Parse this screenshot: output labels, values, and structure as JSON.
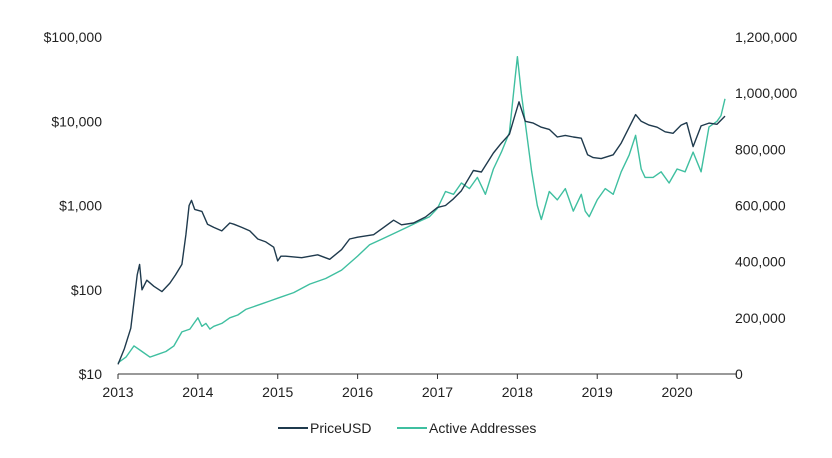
{
  "chart_data": {
    "type": "line",
    "title": "",
    "xlabel": "",
    "grid": false,
    "legend_position": "bottom-center",
    "x_axis": {
      "range": [
        2013,
        2020.75
      ],
      "ticks": [
        2013,
        2014,
        2015,
        2016,
        2017,
        2018,
        2019,
        2020
      ],
      "tick_labels": [
        "2013",
        "2014",
        "2015",
        "2016",
        "2017",
        "2018",
        "2019",
        "2020"
      ]
    },
    "y_left": {
      "scale": "log",
      "range": [
        10,
        100000
      ],
      "ticks": [
        10,
        100,
        1000,
        10000,
        100000
      ],
      "tick_labels": [
        "$10",
        "$100",
        "$1,000",
        "$10,000",
        "$100,000"
      ]
    },
    "y_right": {
      "scale": "linear",
      "range": [
        0,
        1200000
      ],
      "ticks": [
        0,
        200000,
        400000,
        600000,
        800000,
        1000000,
        1200000
      ],
      "tick_labels": [
        "0",
        "200,000",
        "400,000",
        "600,000",
        "800,000",
        "1,000,000",
        "1,200,000"
      ]
    },
    "series": [
      {
        "name": "PriceUSD",
        "axis": "left",
        "color": "#1f3a4d",
        "x": [
          2013.0,
          2013.08,
          2013.16,
          2013.24,
          2013.27,
          2013.3,
          2013.36,
          2013.45,
          2013.55,
          2013.65,
          2013.72,
          2013.8,
          2013.85,
          2013.89,
          2013.92,
          2013.96,
          2014.05,
          2014.12,
          2014.2,
          2014.3,
          2014.4,
          2014.45,
          2014.55,
          2014.65,
          2014.75,
          2014.85,
          2014.95,
          2015.0,
          2015.04,
          2015.1,
          2015.3,
          2015.5,
          2015.65,
          2015.8,
          2015.9,
          2016.0,
          2016.2,
          2016.45,
          2016.55,
          2016.7,
          2016.85,
          2017.0,
          2017.1,
          2017.2,
          2017.3,
          2017.45,
          2017.55,
          2017.7,
          2017.8,
          2017.9,
          2017.96,
          2018.02,
          2018.1,
          2018.2,
          2018.3,
          2018.4,
          2018.5,
          2018.6,
          2018.7,
          2018.8,
          2018.88,
          2018.95,
          2019.05,
          2019.2,
          2019.3,
          2019.4,
          2019.48,
          2019.55,
          2019.65,
          2019.75,
          2019.85,
          2019.95,
          2020.05,
          2020.12,
          2020.2,
          2020.3,
          2020.4,
          2020.5,
          2020.6
        ],
        "values": [
          13,
          20,
          35,
          150,
          200,
          100,
          130,
          110,
          95,
          120,
          150,
          200,
          450,
          1000,
          1150,
          900,
          850,
          600,
          550,
          500,
          620,
          600,
          550,
          500,
          400,
          370,
          320,
          220,
          250,
          250,
          240,
          260,
          230,
          300,
          400,
          420,
          450,
          670,
          590,
          620,
          730,
          950,
          1000,
          1200,
          1500,
          2600,
          2500,
          4200,
          5500,
          7000,
          11000,
          17000,
          10000,
          9500,
          8500,
          8000,
          6500,
          6800,
          6500,
          6300,
          4000,
          3700,
          3600,
          4000,
          5500,
          8500,
          12000,
          10000,
          9000,
          8500,
          7500,
          7200,
          9000,
          9600,
          5000,
          8800,
          9500,
          9200,
          11500
        ]
      },
      {
        "name": "Active Addresses",
        "axis": "right",
        "color": "#3fbfa0",
        "x": [
          2013.0,
          2013.1,
          2013.2,
          2013.3,
          2013.4,
          2013.5,
          2013.6,
          2013.7,
          2013.8,
          2013.9,
          2013.95,
          2014.0,
          2014.05,
          2014.1,
          2014.15,
          2014.2,
          2014.3,
          2014.4,
          2014.5,
          2014.6,
          2014.7,
          2014.8,
          2014.9,
          2015.0,
          2015.2,
          2015.4,
          2015.6,
          2015.8,
          2016.0,
          2016.15,
          2016.3,
          2016.45,
          2016.6,
          2016.75,
          2016.9,
          2017.0,
          2017.1,
          2017.2,
          2017.3,
          2017.4,
          2017.5,
          2017.6,
          2017.7,
          2017.8,
          2017.9,
          2017.97,
          2018.0,
          2018.05,
          2018.12,
          2018.18,
          2018.25,
          2018.3,
          2018.4,
          2018.5,
          2018.6,
          2018.7,
          2018.8,
          2018.85,
          2018.9,
          2019.0,
          2019.1,
          2019.2,
          2019.3,
          2019.4,
          2019.48,
          2019.55,
          2019.6,
          2019.7,
          2019.8,
          2019.9,
          2020.0,
          2020.1,
          2020.2,
          2020.3,
          2020.4,
          2020.5,
          2020.55,
          2020.6
        ],
        "values": [
          40000,
          60000,
          100000,
          80000,
          60000,
          70000,
          80000,
          100000,
          150000,
          160000,
          180000,
          200000,
          170000,
          180000,
          160000,
          170000,
          180000,
          200000,
          210000,
          230000,
          240000,
          250000,
          260000,
          270000,
          290000,
          320000,
          340000,
          370000,
          420000,
          460000,
          480000,
          500000,
          520000,
          540000,
          560000,
          590000,
          650000,
          640000,
          680000,
          660000,
          700000,
          640000,
          730000,
          790000,
          860000,
          1050000,
          1130000,
          1000000,
          850000,
          720000,
          600000,
          550000,
          650000,
          620000,
          660000,
          580000,
          640000,
          580000,
          560000,
          620000,
          660000,
          640000,
          720000,
          780000,
          850000,
          730000,
          700000,
          700000,
          720000,
          680000,
          730000,
          720000,
          790000,
          720000,
          880000,
          900000,
          920000,
          980000
        ]
      }
    ]
  }
}
